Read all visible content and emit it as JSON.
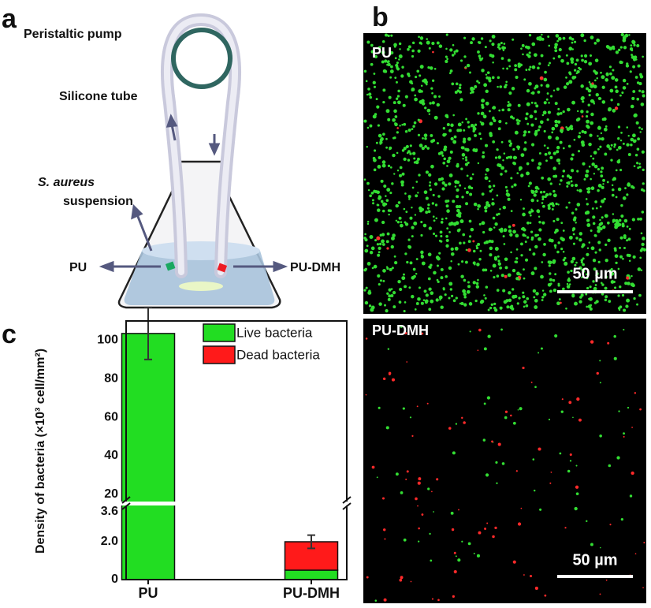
{
  "panel_labels": [
    "a",
    "b",
    "c"
  ],
  "diagram": {
    "pump": "Peristaltic pump",
    "tube": "Silicone tube",
    "bacteria": "S. aureus",
    "suspension": "suspension",
    "left_sample": "PU",
    "right_sample": "PU-DMH"
  },
  "micrographs": [
    {
      "label": "PU",
      "scale_bar": "50 µm"
    },
    {
      "label": "PU-DMH",
      "scale_bar": "50 µm"
    }
  ],
  "chart_data": {
    "type": "bar",
    "stacked": true,
    "y_label": "Density of bacteria (×10³ cell/mm²)",
    "categories": [
      "PU",
      "PU-DMH"
    ],
    "series": [
      {
        "name": "Live bacteria",
        "color": "#22dd22",
        "values": [
          103.5,
          0.5
        ]
      },
      {
        "name": "Dead bacteria",
        "color": "#ff1a1a",
        "values": [
          0,
          1.5
        ]
      }
    ],
    "errors": [
      13.5,
      0.35
    ],
    "ylim": [
      0,
      110
    ],
    "y_break": [
      4,
      15
    ],
    "yticks": [
      0,
      {
        "value": 2,
        "label": "2.0"
      },
      3.6,
      20,
      40,
      60,
      80,
      100
    ],
    "legend": "upper right"
  }
}
